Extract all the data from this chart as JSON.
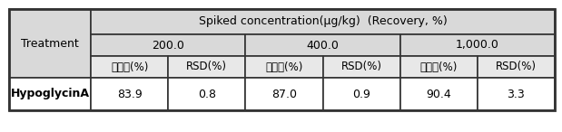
{
  "title_row": "Spiked concentration(μg/kg)  (Recovery, %)",
  "col_header_row": [
    "200.0",
    "400.0",
    "1,000.0"
  ],
  "sub_headers": [
    "회수율(%)",
    "RSD(%)",
    "회수율(%)",
    "RSD(%)",
    "회수율(%)",
    "RSD(%)"
  ],
  "row_label": "Treatment",
  "data_row_label": "HypoglycinA",
  "data_values": [
    "83.9",
    "0.8",
    "87.0",
    "0.9",
    "90.4",
    "3.3"
  ],
  "bg_header": "#d9d9d9",
  "bg_subheader": "#e8e8e8",
  "bg_white": "#ffffff",
  "border_color": "#333333",
  "text_color": "#000000",
  "font_size": 9
}
